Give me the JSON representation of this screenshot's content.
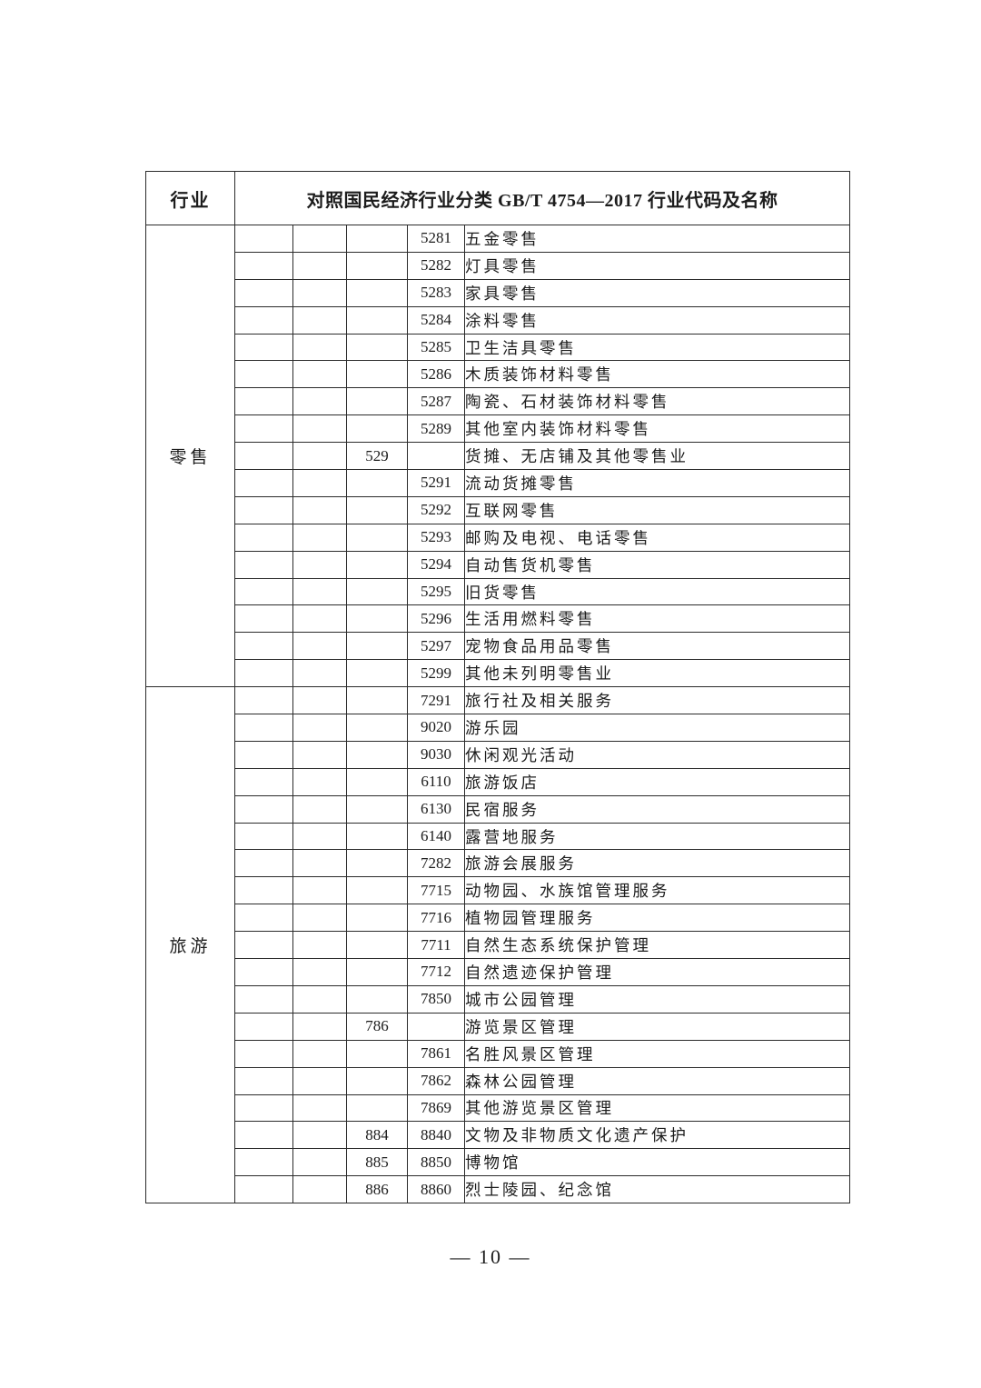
{
  "page": {
    "footer_page_number": "— 10 —"
  },
  "table": {
    "header": {
      "industry": "行业",
      "mapping": "对照国民经济行业分类 GB/T 4754—2017 行业代码及名称"
    },
    "sections": [
      {
        "industry": "零售",
        "rows": [
          {
            "code3": "",
            "code4": "5281",
            "name": "五金零售",
            "indent": 2
          },
          {
            "code3": "",
            "code4": "5282",
            "name": "灯具零售",
            "indent": 2
          },
          {
            "code3": "",
            "code4": "5283",
            "name": "家具零售",
            "indent": 2
          },
          {
            "code3": "",
            "code4": "5284",
            "name": "涂料零售",
            "indent": 2
          },
          {
            "code3": "",
            "code4": "5285",
            "name": "卫生洁具零售",
            "indent": 2
          },
          {
            "code3": "",
            "code4": "5286",
            "name": "木质装饰材料零售",
            "indent": 2
          },
          {
            "code3": "",
            "code4": "5287",
            "name": "陶瓷、石材装饰材料零售",
            "indent": 2
          },
          {
            "code3": "",
            "code4": "5289",
            "name": "其他室内装饰材料零售",
            "indent": 2
          },
          {
            "code3": "529",
            "code4": "",
            "name": "货摊、无店铺及其他零售业",
            "indent": 0
          },
          {
            "code3": "",
            "code4": "5291",
            "name": "流动货摊零售",
            "indent": 2
          },
          {
            "code3": "",
            "code4": "5292",
            "name": "互联网零售",
            "indent": 2
          },
          {
            "code3": "",
            "code4": "5293",
            "name": "邮购及电视、电话零售",
            "indent": 2
          },
          {
            "code3": "",
            "code4": "5294",
            "name": "自动售货机零售",
            "indent": 2
          },
          {
            "code3": "",
            "code4": "5295",
            "name": "旧货零售",
            "indent": 2
          },
          {
            "code3": "",
            "code4": "5296",
            "name": "生活用燃料零售",
            "indent": 2
          },
          {
            "code3": "",
            "code4": "5297",
            "name": "宠物食品用品零售",
            "indent": 2
          },
          {
            "code3": "",
            "code4": "5299",
            "name": "其他未列明零售业",
            "indent": 2
          }
        ]
      },
      {
        "industry": "旅游",
        "rows": [
          {
            "code3": "",
            "code4": "7291",
            "name": "旅行社及相关服务",
            "indent": 2
          },
          {
            "code3": "",
            "code4": "9020",
            "name": "游乐园",
            "indent": 1
          },
          {
            "code3": "",
            "code4": "9030",
            "name": "休闲观光活动",
            "indent": 1
          },
          {
            "code3": "",
            "code4": "6110",
            "name": "旅游饭店",
            "indent": 1
          },
          {
            "code3": "",
            "code4": "6130",
            "name": "民宿服务",
            "indent": 1
          },
          {
            "code3": "",
            "code4": "6140",
            "name": "露营地服务",
            "indent": 1
          },
          {
            "code3": "",
            "code4": "7282",
            "name": "旅游会展服务",
            "indent": 2
          },
          {
            "code3": "",
            "code4": "7715",
            "name": "动物园、水族馆管理服务",
            "indent": 2
          },
          {
            "code3": "",
            "code4": "7716",
            "name": "植物园管理服务",
            "indent": 2
          },
          {
            "code3": "",
            "code4": "7711",
            "name": "自然生态系统保护管理",
            "indent": 2
          },
          {
            "code3": "",
            "code4": "7712",
            "name": "自然遗迹保护管理",
            "indent": 2
          },
          {
            "code3": "",
            "code4": "7850",
            "name": "城市公园管理",
            "indent": 1
          },
          {
            "code3": "786",
            "code4": "",
            "name": "游览景区管理",
            "indent": 1
          },
          {
            "code3": "",
            "code4": "7861",
            "name": "名胜风景区管理",
            "indent": 2
          },
          {
            "code3": "",
            "code4": "7862",
            "name": "森林公园管理",
            "indent": 2
          },
          {
            "code3": "",
            "code4": "7869",
            "name": "其他游览景区管理",
            "indent": 2
          },
          {
            "code3": "884",
            "code4": "8840",
            "name": "文物及非物质文化遗产保护",
            "indent": 1
          },
          {
            "code3": "885",
            "code4": "8850",
            "name": "博物馆",
            "indent": 1
          },
          {
            "code3": "886",
            "code4": "8860",
            "name": "烈士陵园、纪念馆",
            "indent": 1
          }
        ]
      }
    ]
  }
}
